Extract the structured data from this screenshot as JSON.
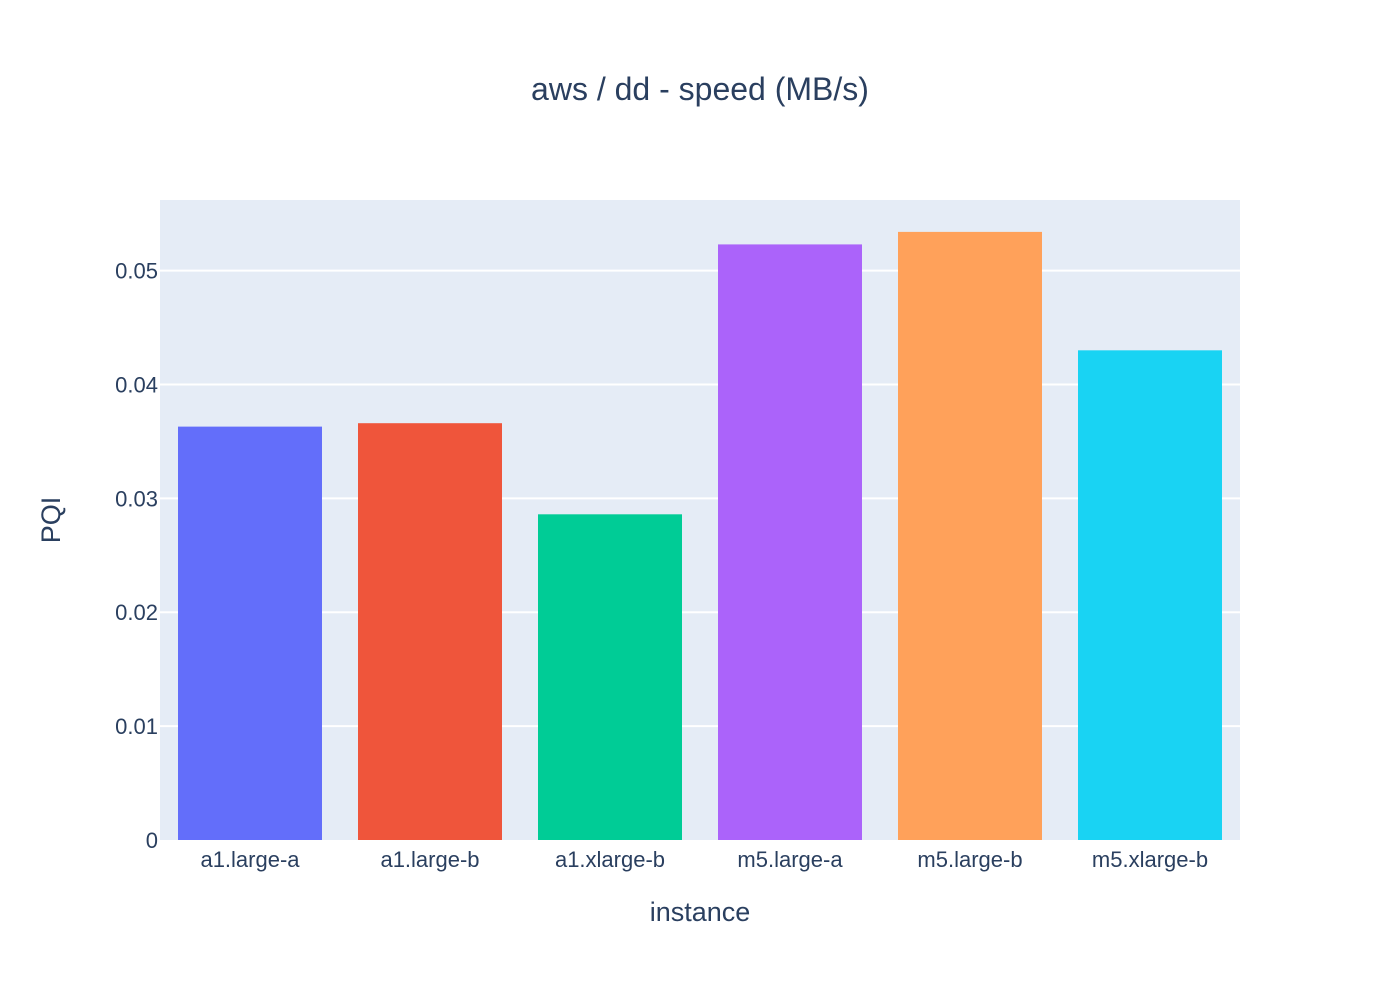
{
  "chart_data": {
    "type": "bar",
    "title": "aws / dd - speed (MB/s)",
    "xlabel": "instance",
    "ylabel": "PQI",
    "categories": [
      "a1.large-a",
      "a1.large-b",
      "a1.xlarge-b",
      "m5.large-a",
      "m5.large-b",
      "m5.xlarge-b"
    ],
    "values": [
      0.0363,
      0.0366,
      0.0286,
      0.0523,
      0.0534,
      0.043
    ],
    "colors": [
      "#636efa",
      "#ef553b",
      "#00cc96",
      "#ab63fa",
      "#ffa15a",
      "#19d3f3"
    ],
    "ylim": [
      0,
      0.0562
    ],
    "yticks": [
      "0",
      "0.01",
      "0.02",
      "0.03",
      "0.04",
      "0.05"
    ],
    "grid": true,
    "legend": "none",
    "plot_bg": "#e5ecf6"
  }
}
